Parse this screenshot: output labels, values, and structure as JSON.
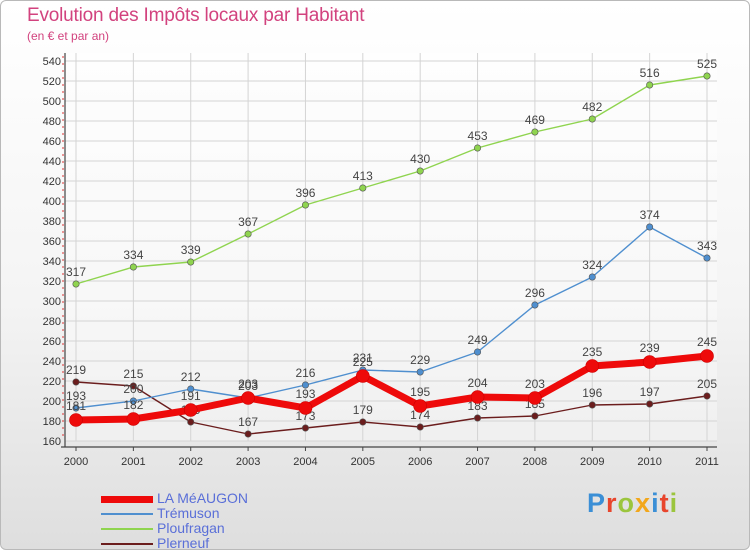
{
  "header": {
    "title": "Evolution des Impôts locaux par Habitant",
    "subtitle": "(en € et par an)"
  },
  "brand": {
    "text": "Proxiti",
    "colors": [
      "#3b8fd6",
      "#e8452c",
      "#9bc53d",
      "#f2a71b",
      "#3b8fd6",
      "#e8452c",
      "#9bc53d"
    ]
  },
  "chart_data": {
    "type": "line",
    "x": [
      "2000",
      "2001",
      "2002",
      "2003",
      "2004",
      "2005",
      "2006",
      "2007",
      "2008",
      "2009",
      "2010",
      "2011"
    ],
    "ylim": [
      160,
      540
    ],
    "yticks": [
      "160",
      "180",
      "200",
      "220",
      "240",
      "260",
      "280",
      "300",
      "320",
      "340",
      "360",
      "380",
      "400",
      "420",
      "440",
      "460",
      "480",
      "500",
      "520",
      "540"
    ],
    "grid": true,
    "legend_position": "bottom-left",
    "series": [
      {
        "name": "Plerneuf",
        "color": "#6b1d1d",
        "values": [
          219,
          215,
          179,
          167,
          173,
          179,
          174,
          183,
          185,
          196,
          197,
          205
        ],
        "labels": [
          "219",
          "215",
          "179",
          "167",
          "173",
          "179",
          "174",
          "183",
          "185",
          "196",
          "197",
          "205"
        ]
      },
      {
        "name": "Trémuson",
        "color": "#4f8fcf",
        "values": [
          193,
          200,
          212,
          203,
          216,
          231,
          229,
          249,
          296,
          324,
          374,
          343
        ],
        "labels": [
          "193",
          "200",
          "212",
          "203",
          "216",
          "231",
          "229",
          "249",
          "296",
          "324",
          "374",
          "343"
        ]
      },
      {
        "name": "Ploufragan",
        "color": "#8fd44f",
        "values": [
          317,
          334,
          339,
          367,
          396,
          413,
          430,
          453,
          469,
          482,
          516,
          525
        ],
        "labels": [
          "317",
          "334",
          "339",
          "367",
          "396",
          "413",
          "430",
          "453",
          "469",
          "482",
          "516",
          "525"
        ]
      },
      {
        "name": "LA MéAUGON",
        "color": "#ee0a0a",
        "values": [
          181,
          182,
          191,
          203,
          193,
          225,
          195,
          204,
          203,
          235,
          239,
          245
        ],
        "labels": [
          "181",
          "182",
          "191",
          "203",
          "193",
          "225",
          "195",
          "204",
          "203",
          "235",
          "239",
          "245"
        ]
      }
    ],
    "legend_order": [
      "LA MéAUGON",
      "Trémuson",
      "Ploufragan",
      "Plerneuf"
    ]
  }
}
